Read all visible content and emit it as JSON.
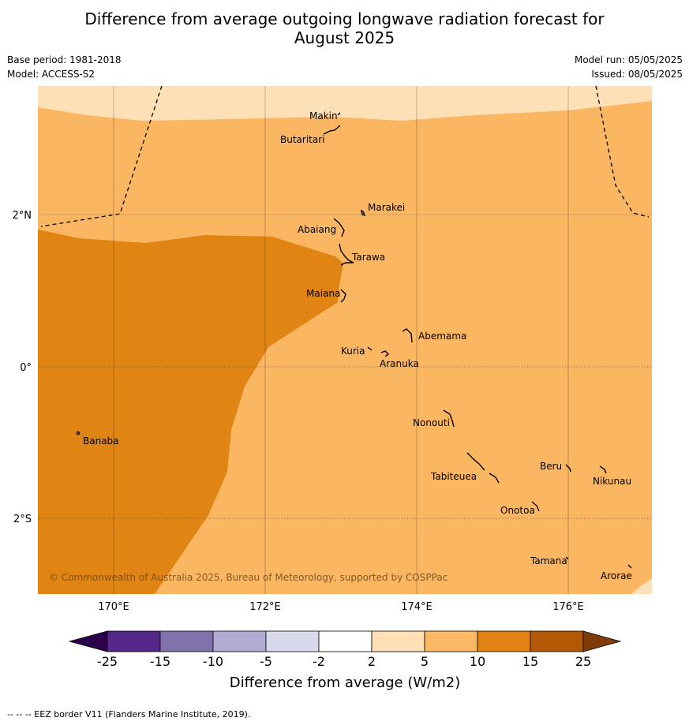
{
  "header": {
    "title_line1": "Difference from average outgoing longwave radiation forecast for",
    "title_line2": "August 2025",
    "base_period": "Base period: 1981-2018",
    "model": "Model: ACCESS-S2",
    "model_run": "Model run: 05/05/2025",
    "issued": "Issued: 08/05/2025"
  },
  "map": {
    "lat_labels": [
      "2°N",
      "0°",
      "2°S"
    ],
    "lon_labels": [
      "170°E",
      "172°E",
      "174°E",
      "176°E"
    ],
    "places": [
      "Makin",
      "Butaritari",
      "Marakei",
      "Abaiang",
      "Tarawa",
      "Maiana",
      "Abemama",
      "Kuria",
      "Aranuka",
      "Nonouti",
      "Banaba",
      "Beru",
      "Nikunau",
      "Tabiteuea",
      "Onotoa",
      "Tamana",
      "Arorae"
    ],
    "copyright": "© Commonwealth of Australia 2025, Bureau of Meteorology, supported by COSPPac",
    "colors": {
      "band_2_5": "#fde0b5",
      "band_5_10": "#fbb662",
      "band_10_15": "#e08414",
      "band_15_25": "#b35806"
    }
  },
  "legend": {
    "title": "Difference from average (W/m2)",
    "ticks": [
      "-25",
      "-15",
      "-10",
      "-5",
      "-2",
      "2",
      "5",
      "10",
      "15",
      "25"
    ],
    "colors": [
      "#2d004b",
      "#542788",
      "#8073ac",
      "#b2abd2",
      "#d8daeb",
      "#ffffff",
      "#fee0b6",
      "#fdb863",
      "#e08214",
      "#b35806",
      "#7f3b08"
    ]
  },
  "footer": {
    "eez_note": "--  --  -- EEZ border V11 (Flanders Marine Institute, 2019)."
  }
}
